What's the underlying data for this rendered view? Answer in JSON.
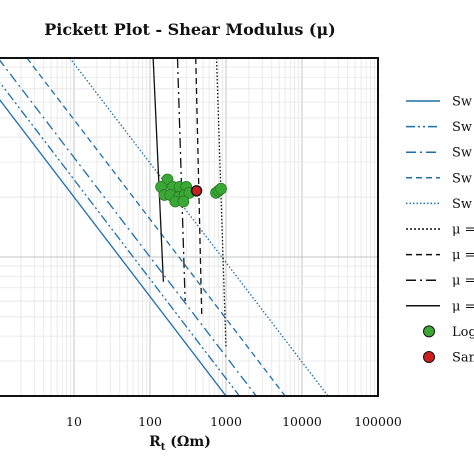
{
  "chart_data": {
    "type": "scatter",
    "title": "Pickett Plot - Shear Modulus (μ)",
    "xlabel_main": "R",
    "xlabel_sub": "t",
    "xlabel_unit": " (Ωm)",
    "xscale": "log",
    "xlim": [
      1,
      100000
    ],
    "yscale": "log",
    "ylim": [
      0.02,
      1
    ],
    "x_ticks": [
      "10",
      "100",
      "1000",
      "10000",
      "100000"
    ],
    "grid": true,
    "legend_position": "right",
    "sw_lines": [
      {
        "style": "solid",
        "color": "#1f6ea8",
        "x_at_bottom": 1000
      },
      {
        "style": "dashdot2",
        "color": "#1f6ea8",
        "x_at_bottom": 1500
      },
      {
        "style": "dashdot",
        "color": "#1f6ea8",
        "x_at_bottom": 2500
      },
      {
        "style": "dashed",
        "color": "#1f6ea8",
        "x_at_bottom": 6000
      },
      {
        "style": "dotted",
        "color": "#1f6ea8",
        "x_at_bottom": 22000
      }
    ],
    "mu_lines": [
      {
        "style": "dotted",
        "color": "#111111",
        "x_top": 750,
        "x_bottom": 1000
      },
      {
        "style": "dashed",
        "color": "#111111",
        "x_top": 400,
        "x_bottom": 480
      },
      {
        "style": "dashdot",
        "color": "#111111",
        "x_top": 230,
        "x_bottom": 290
      },
      {
        "style": "solid",
        "color": "#111111",
        "x_top": 110,
        "x_bottom": 150
      }
    ],
    "log_points": {
      "color": "#3aa835",
      "points": [
        [
          170,
          0.245
        ],
        [
          140,
          0.225
        ],
        [
          200,
          0.225
        ],
        [
          245,
          0.225
        ],
        [
          300,
          0.225
        ],
        [
          155,
          0.205
        ],
        [
          185,
          0.205
        ],
        [
          240,
          0.2
        ],
        [
          285,
          0.205
        ],
        [
          330,
          0.21
        ],
        [
          215,
          0.19
        ],
        [
          275,
          0.19
        ],
        [
          740,
          0.21
        ],
        [
          800,
          0.215
        ],
        [
          860,
          0.22
        ]
      ]
    },
    "sample_points": {
      "color": "#cc1f1f",
      "points": [
        [
          410,
          0.215
        ]
      ]
    },
    "legend": [
      {
        "label": "Sw",
        "kind": "line",
        "color": "#1f6ea8",
        "dash": ""
      },
      {
        "label": "Sw",
        "kind": "line",
        "color": "#1f6ea8",
        "dash": "9,3,2,3,2,3"
      },
      {
        "label": "Sw",
        "kind": "line",
        "color": "#1f6ea8",
        "dash": "10,4,2,4"
      },
      {
        "label": "Sw",
        "kind": "line",
        "color": "#1f6ea8",
        "dash": "6,4"
      },
      {
        "label": "Sw",
        "kind": "line",
        "color": "#1f6ea8",
        "dash": "1.5,2"
      },
      {
        "label": "μ =",
        "kind": "line",
        "color": "#111111",
        "dash": "2,2"
      },
      {
        "label": "μ =",
        "kind": "line",
        "color": "#111111",
        "dash": "6,4"
      },
      {
        "label": "μ =",
        "kind": "line",
        "color": "#111111",
        "dash": "10,4,2,4"
      },
      {
        "label": "μ =",
        "kind": "line",
        "color": "#111111",
        "dash": ""
      },
      {
        "label": "Log",
        "kind": "marker",
        "color": "#3aa835"
      },
      {
        "label": "Sam",
        "kind": "marker",
        "color": "#cc1f1f"
      }
    ]
  }
}
